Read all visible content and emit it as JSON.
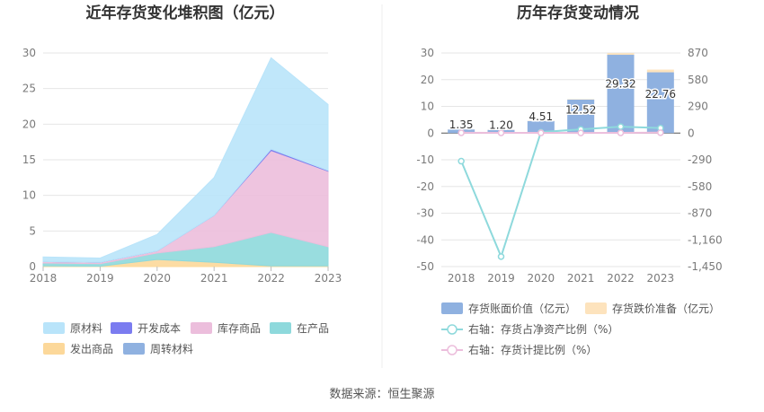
{
  "source_text": "数据来源：恒生聚源",
  "chart_data": [
    {
      "type": "area",
      "title": "近年存货变化堆积图（亿元）",
      "x": [
        "2018",
        "2019",
        "2020",
        "2021",
        "2022",
        "2023"
      ],
      "ylim": [
        0,
        30
      ],
      "yticks": [
        "0",
        "5",
        "10",
        "15",
        "20",
        "25",
        "30"
      ],
      "grid": true,
      "legend_position": "bottom",
      "series": [
        {
          "name": "发出商品",
          "color": "#fcd89a",
          "values": [
            0.1,
            0.05,
            1.0,
            0.6,
            0.1,
            0.1
          ]
        },
        {
          "name": "在产品",
          "color": "#8ed9dc",
          "values": [
            0.4,
            0.35,
            0.9,
            2.2,
            4.7,
            2.7
          ]
        },
        {
          "name": "库存商品",
          "color": "#ecbedc",
          "values": [
            0.2,
            0.2,
            0.3,
            4.4,
            11.5,
            10.6
          ]
        },
        {
          "name": "开发成本",
          "color": "#7b7cf0",
          "values": [
            0.0,
            0.0,
            0.0,
            0.0,
            0.2,
            0.1
          ]
        },
        {
          "name": "周转材料",
          "color": "#8fb1e0",
          "values": [
            0.0,
            0.0,
            0.0,
            0.0,
            0.0,
            0.0
          ]
        },
        {
          "name": "原材料",
          "color": "#b9e4fa",
          "values": [
            0.65,
            0.6,
            2.31,
            5.32,
            12.82,
            9.26
          ]
        }
      ],
      "legend_order": [
        "原材料",
        "开发成本",
        "库存商品",
        "在产品",
        "发出商品",
        "周转材料"
      ]
    },
    {
      "type": "bar",
      "title": "历年存货变动情况",
      "categories": [
        "2018",
        "2019",
        "2020",
        "2021",
        "2022",
        "2023"
      ],
      "ylim_left": [
        -50,
        30
      ],
      "yticks_left": [
        "-50",
        "-40",
        "-30",
        "-20",
        "-10",
        "0",
        "10",
        "20",
        "30"
      ],
      "ylim_right": [
        -1450,
        870
      ],
      "yticks_right": [
        "-1,450",
        "-1,160",
        "-870",
        "-580",
        "-290",
        "0",
        "290",
        "580",
        "870"
      ],
      "grid": true,
      "legend_position": "bottom",
      "bar_series": [
        {
          "name": "存货账面价值（亿元）",
          "color": "#8fb1e0",
          "values": [
            1.35,
            1.2,
            4.51,
            12.52,
            29.32,
            22.76
          ],
          "labels": [
            "1.35",
            "1.20",
            "4.51",
            "12.52",
            "29.32",
            "22.76"
          ]
        },
        {
          "name": "存货跌价准备（亿元）",
          "color": "#fde3bd",
          "values": [
            0.05,
            0.05,
            0.1,
            0.15,
            0.6,
            1.0
          ]
        }
      ],
      "line_series": [
        {
          "name": "右轴：存货占净资产比例（%）",
          "color": "#8ed9dc",
          "values": [
            -305,
            -1341,
            10,
            40,
            70,
            55
          ]
        },
        {
          "name": "右轴：存货计提比例（%）",
          "color": "#ecbedc",
          "values": [
            3,
            2,
            2,
            1,
            2,
            4
          ]
        }
      ]
    }
  ]
}
